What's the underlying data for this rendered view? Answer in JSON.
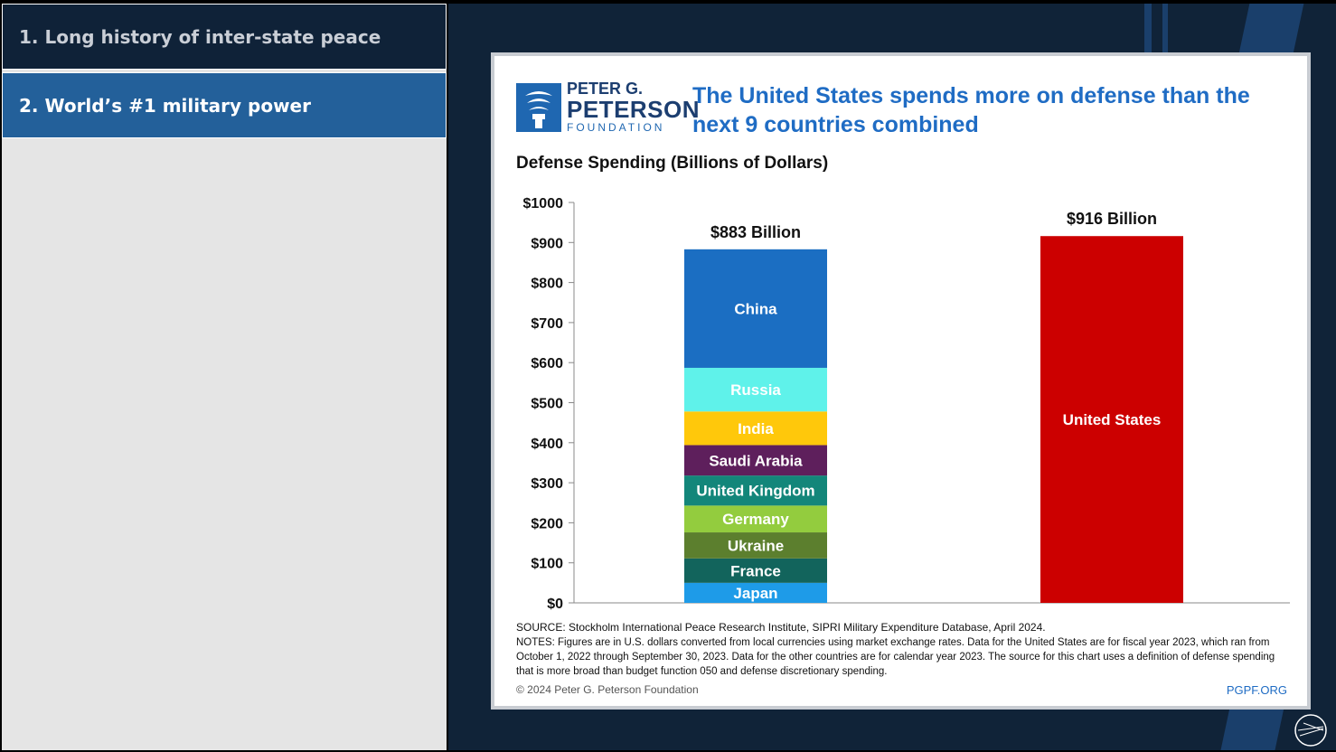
{
  "nav": {
    "items": [
      {
        "label": "1. Long history of inter-state peace"
      },
      {
        "label": "2. World’s #1 military power"
      }
    ]
  },
  "logo": {
    "line1": "PETER G.",
    "line2": "PETERSON",
    "line3": "FOUNDATION"
  },
  "headline": "The United States spends more on defense than the next 9 countries combined",
  "footer": {
    "source": "SOURCE: Stockholm International Peace Research Institute, SIPRI Military Expenditure Database, April 2024.",
    "notes": "NOTES: Figures are in U.S. dollars converted from local currencies using market exchange rates. Data for the United States are for fiscal year 2023, which ran from October 1, 2022 through September 30, 2023. Data for the other countries are for calendar year 2023. The source for this chart uses a definition of defense spending that is more broad than budget function 050 and defense discretionary spending.",
    "copyright": "© 2024 Peter G. Peterson Foundation",
    "site": "PGPF.ORG"
  },
  "colors": {
    "accent": "#1f6cc4",
    "us_red": "#cc0000"
  },
  "chart_data": {
    "type": "bar",
    "title": "Defense Spending (Billions of Dollars)",
    "ylim": [
      0,
      1000
    ],
    "yticks": [
      "$0",
      "$100",
      "$200",
      "$300",
      "$400",
      "$500",
      "$600",
      "$700",
      "$800",
      "$900",
      "$1000"
    ],
    "bars": [
      {
        "total_label": "$883 Billion",
        "total": 883,
        "segments": [
          {
            "name": "Japan",
            "value": 50,
            "color": "#1e9be8"
          },
          {
            "name": "France",
            "value": 61,
            "color": "#12645c"
          },
          {
            "name": "Ukraine",
            "value": 65,
            "color": "#5c7f2e"
          },
          {
            "name": "Germany",
            "value": 67,
            "color": "#93cc3e"
          },
          {
            "name": "United Kingdom",
            "value": 75,
            "color": "#13867a"
          },
          {
            "name": "Saudi Arabia",
            "value": 76,
            "color": "#5e1f5c"
          },
          {
            "name": "India",
            "value": 84,
            "color": "#ffc80b"
          },
          {
            "name": "Russia",
            "value": 109,
            "color": "#5ff2ea"
          },
          {
            "name": "China",
            "value": 296,
            "color": "#1b6ec2"
          }
        ]
      },
      {
        "total_label": "$916 Billion",
        "total": 916,
        "segments": [
          {
            "name": "United States",
            "value": 916,
            "color": "#cc0000"
          }
        ]
      }
    ]
  }
}
